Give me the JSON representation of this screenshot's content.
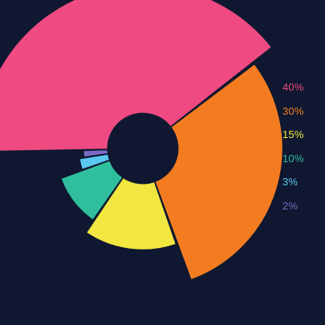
{
  "colors": {
    "background": "#0f1830",
    "hole": "#0f1830"
  },
  "chart_data": {
    "type": "pie",
    "variant": "radial-donut",
    "title": "",
    "slices": [
      {
        "label": "40%",
        "value": 40,
        "color": "#ef4a82"
      },
      {
        "label": "30%",
        "value": 30,
        "color": "#f47c20"
      },
      {
        "label": "15%",
        "value": 15,
        "color": "#f2e640"
      },
      {
        "label": "10%",
        "value": 10,
        "color": "#2fbf9f"
      },
      {
        "label": "3%",
        "value": 3,
        "color": "#5bc8f2"
      },
      {
        "label": "2%",
        "value": 2,
        "color": "#7b6bc8"
      }
    ],
    "legend": "right"
  }
}
